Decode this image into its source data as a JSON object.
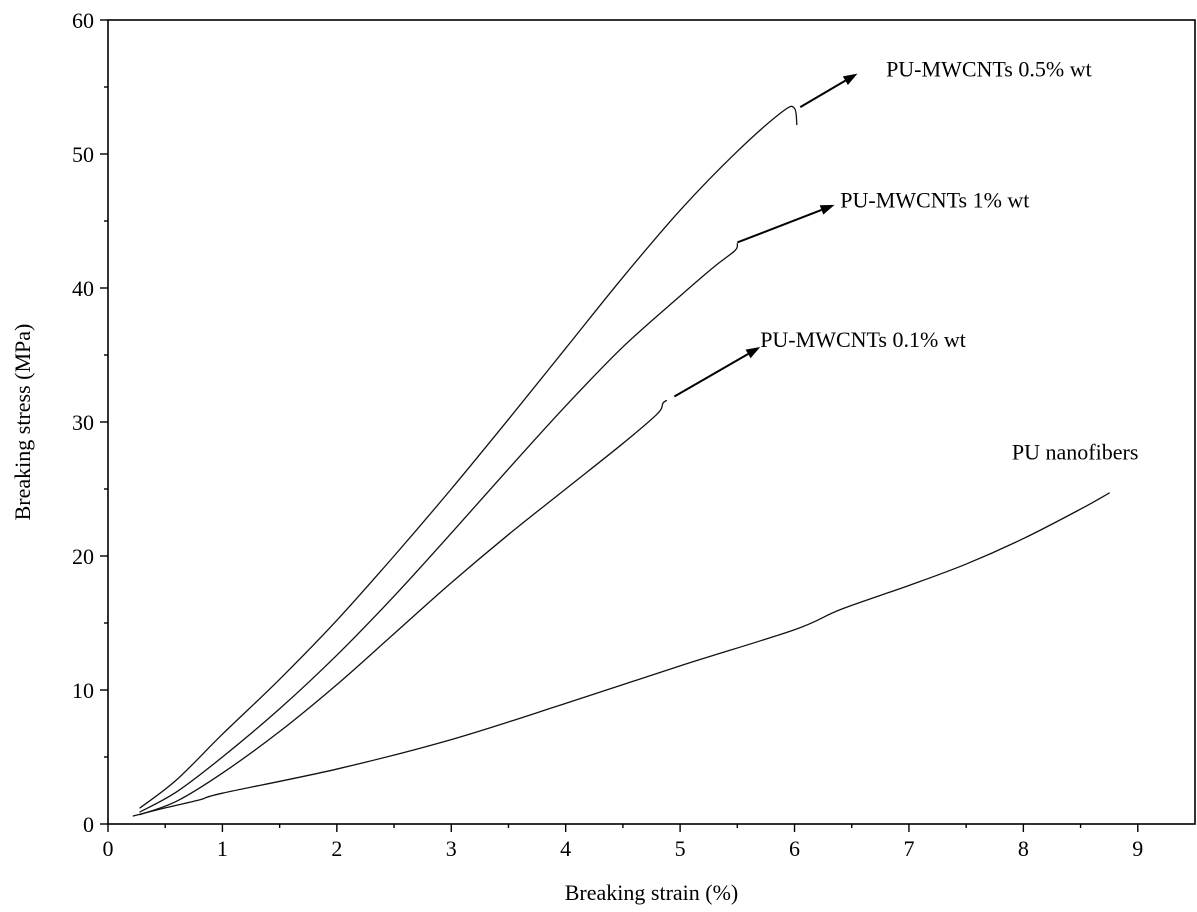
{
  "chart_data": {
    "type": "line",
    "xlabel": "Breaking strain (%)",
    "ylabel": "Breaking stress (MPa)",
    "xlim": [
      0,
      9.5
    ],
    "ylim": [
      0,
      60
    ],
    "x_ticks": [
      0,
      1,
      2,
      3,
      4,
      5,
      6,
      7,
      8,
      9
    ],
    "y_ticks": [
      0,
      10,
      20,
      30,
      40,
      50,
      60
    ],
    "grid": false,
    "series": [
      {
        "name": "PU-MWCNTs 0.5% wt",
        "points": [
          [
            0.28,
            1.2
          ],
          [
            0.6,
            3.3
          ],
          [
            1.0,
            6.7
          ],
          [
            1.5,
            10.8
          ],
          [
            2.0,
            15.2
          ],
          [
            2.5,
            20.0
          ],
          [
            3.0,
            25.0
          ],
          [
            3.5,
            30.2
          ],
          [
            4.0,
            35.5
          ],
          [
            4.5,
            40.8
          ],
          [
            5.0,
            45.8
          ],
          [
            5.5,
            50.2
          ],
          [
            5.9,
            53.2
          ],
          [
            6.0,
            53.4
          ],
          [
            6.02,
            52.2
          ]
        ]
      },
      {
        "name": "PU-MWCNTs 1% wt",
        "points": [
          [
            0.28,
            0.9
          ],
          [
            0.6,
            2.4
          ],
          [
            1.0,
            5.0
          ],
          [
            1.5,
            8.6
          ],
          [
            2.0,
            12.6
          ],
          [
            2.5,
            17.0
          ],
          [
            3.0,
            21.7
          ],
          [
            3.5,
            26.5
          ],
          [
            4.0,
            31.2
          ],
          [
            4.5,
            35.6
          ],
          [
            5.0,
            39.4
          ],
          [
            5.3,
            41.6
          ],
          [
            5.48,
            42.8
          ],
          [
            5.5,
            43.3
          ]
        ]
      },
      {
        "name": "PU-MWCNTs 0.1% wt",
        "points": [
          [
            0.28,
            0.7
          ],
          [
            0.6,
            1.7
          ],
          [
            1.0,
            3.8
          ],
          [
            1.5,
            6.9
          ],
          [
            2.0,
            10.4
          ],
          [
            2.5,
            14.2
          ],
          [
            3.0,
            18.0
          ],
          [
            3.5,
            21.6
          ],
          [
            4.0,
            25.0
          ],
          [
            4.5,
            28.4
          ],
          [
            4.8,
            30.6
          ],
          [
            4.85,
            31.4
          ],
          [
            4.88,
            31.6
          ]
        ]
      },
      {
        "name": "PU nanofibers",
        "points": [
          [
            0.22,
            0.6
          ],
          [
            0.5,
            1.2
          ],
          [
            0.8,
            1.8
          ],
          [
            1.0,
            2.3
          ],
          [
            2.0,
            4.1
          ],
          [
            3.0,
            6.3
          ],
          [
            4.0,
            9.0
          ],
          [
            5.0,
            11.8
          ],
          [
            6.0,
            14.5
          ],
          [
            6.4,
            16.0
          ],
          [
            7.0,
            17.8
          ],
          [
            7.5,
            19.4
          ],
          [
            8.0,
            21.3
          ],
          [
            8.5,
            23.5
          ],
          [
            8.75,
            24.7
          ]
        ]
      }
    ],
    "annotations": [
      {
        "text": "PU-MWCNTs 0.5% wt",
        "tx": 6.8,
        "ty": 55.8,
        "ax0": 6.05,
        "ay0": 53.5,
        "ax1": 6.55,
        "ay1": 56.0,
        "arrow": true
      },
      {
        "text": "PU-MWCNTs 1% wt",
        "tx": 6.4,
        "ty": 46.0,
        "ax0": 5.5,
        "ay0": 43.4,
        "ax1": 6.35,
        "ay1": 46.2,
        "arrow": true
      },
      {
        "text": "PU-MWCNTs 0.1% wt",
        "tx": 5.7,
        "ty": 35.6,
        "ax0": 4.95,
        "ay0": 31.9,
        "ax1": 5.7,
        "ay1": 35.6,
        "arrow": true
      },
      {
        "text": "PU nanofibers",
        "tx": 7.9,
        "ty": 27.2,
        "arrow": false
      }
    ]
  }
}
